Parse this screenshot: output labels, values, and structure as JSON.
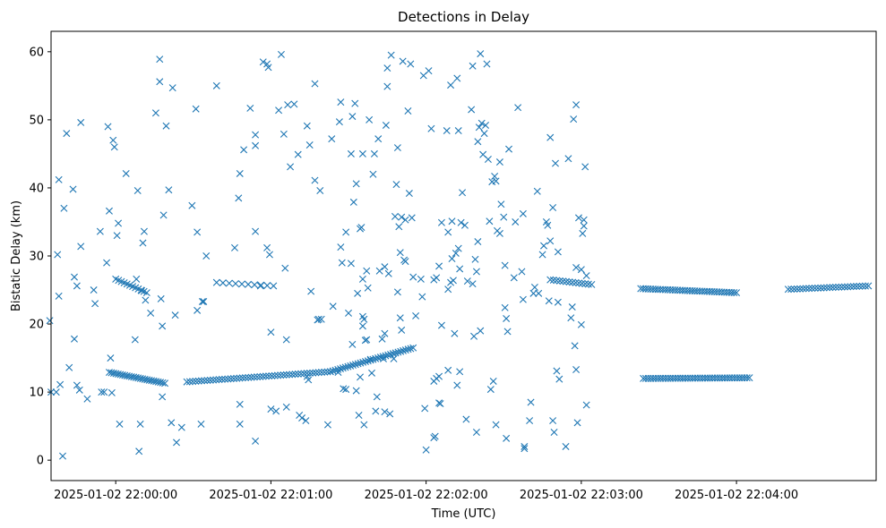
{
  "chart_data": {
    "type": "scatter",
    "title": "Detections in Delay",
    "xlabel": "Time (UTC)",
    "ylabel": "Bistatic Delay (km)",
    "marker": "x",
    "color": "#1f77b4",
    "x_unit": "seconds after 2025-01-02 21:59:00",
    "xlim": [
      35,
      354
    ],
    "ylim": [
      -3,
      63
    ],
    "x_ticks": [
      {
        "value": 60,
        "label": "2025-01-02 22:00:00"
      },
      {
        "value": 120,
        "label": "2025-01-02 22:01:00"
      },
      {
        "value": 180,
        "label": "2025-01-02 22:02:00"
      },
      {
        "value": 240,
        "label": "2025-01-02 22:03:00"
      },
      {
        "value": 300,
        "label": "2025-01-02 22:04:00"
      }
    ],
    "y_ticks": [
      0,
      10,
      20,
      30,
      40,
      50,
      60
    ],
    "tracks": [
      {
        "name": "track-low-1",
        "t_start": 57.5,
        "t_end": 79,
        "y_start": 12.9,
        "y_end": 11.3,
        "n": 26
      },
      {
        "name": "track-low-2",
        "t_start": 87.5,
        "t_end": 143,
        "y_start": 11.5,
        "y_end": 13.0,
        "n": 50
      },
      {
        "name": "track-rising",
        "t_start": 143,
        "t_end": 175,
        "y_start": 13.0,
        "y_end": 16.5,
        "n": 34
      },
      {
        "name": "track-low-3",
        "t_start": 264,
        "t_end": 305,
        "y_start": 12.0,
        "y_end": 12.1,
        "n": 44
      },
      {
        "name": "track-mid-1",
        "t_start": 60,
        "t_end": 72,
        "y_start": 26.6,
        "y_end": 24.6,
        "n": 12
      },
      {
        "name": "track-mid-2",
        "t_start": 99,
        "t_end": 121,
        "y_start": 26.1,
        "y_end": 25.6,
        "n": 10
      },
      {
        "name": "track-mid-3",
        "t_start": 228,
        "t_end": 244,
        "y_start": 26.5,
        "y_end": 25.8,
        "n": 14
      },
      {
        "name": "track-mid-4",
        "t_start": 263,
        "t_end": 300,
        "y_start": 25.2,
        "y_end": 24.6,
        "n": 40
      },
      {
        "name": "track-mid-5",
        "t_start": 320,
        "t_end": 351,
        "y_start": 25.1,
        "y_end": 25.6,
        "n": 28
      }
    ],
    "points": [
      [
        34.5,
        20.5
      ],
      [
        35,
        10
      ],
      [
        37,
        10
      ],
      [
        37.5,
        30.2
      ],
      [
        38,
        41.2
      ],
      [
        38,
        24.1
      ],
      [
        38.5,
        11.1
      ],
      [
        39.5,
        0.6
      ],
      [
        40,
        37
      ],
      [
        41,
        48
      ],
      [
        42,
        13.6
      ],
      [
        43.5,
        39.8
      ],
      [
        44,
        17.8
      ],
      [
        44,
        26.9
      ],
      [
        45,
        25.6
      ],
      [
        45,
        11
      ],
      [
        46,
        10.3
      ],
      [
        46.5,
        31.4
      ],
      [
        46.5,
        49.6
      ],
      [
        49,
        9
      ],
      [
        51.5,
        25
      ],
      [
        52,
        23
      ],
      [
        54,
        33.6
      ],
      [
        54.5,
        10
      ],
      [
        55.5,
        10
      ],
      [
        56.5,
        29
      ],
      [
        57,
        49
      ],
      [
        57.5,
        36.6
      ],
      [
        58,
        15
      ],
      [
        58.5,
        9.9
      ],
      [
        59,
        47
      ],
      [
        59.5,
        46
      ],
      [
        60.5,
        33
      ],
      [
        61,
        34.8
      ],
      [
        61.5,
        5.3
      ],
      [
        64,
        42.1
      ],
      [
        67.5,
        17.7
      ],
      [
        68,
        26.6
      ],
      [
        68.5,
        39.6
      ],
      [
        69,
        1.3
      ],
      [
        69.5,
        5.3
      ],
      [
        70,
        24.9
      ],
      [
        70.5,
        31.9
      ],
      [
        71,
        33.6
      ],
      [
        71.5,
        23.5
      ],
      [
        73.5,
        21.6
      ],
      [
        75.5,
        51
      ],
      [
        77,
        58.9
      ],
      [
        77,
        55.6
      ],
      [
        77.5,
        23.7
      ],
      [
        78,
        19.7
      ],
      [
        78,
        9.3
      ],
      [
        78.5,
        36
      ],
      [
        79.5,
        49.1
      ],
      [
        80.5,
        39.7
      ],
      [
        81.5,
        5.5
      ],
      [
        82,
        54.7
      ],
      [
        83,
        21.3
      ],
      [
        83.5,
        2.6
      ],
      [
        85.5,
        4.8
      ],
      [
        89.5,
        37.4
      ],
      [
        91,
        51.6
      ],
      [
        91.5,
        33.5
      ],
      [
        91.5,
        22
      ],
      [
        93,
        5.3
      ],
      [
        93.5,
        23.3
      ],
      [
        94,
        23.3
      ],
      [
        95,
        30
      ],
      [
        99,
        55
      ],
      [
        106,
        31.2
      ],
      [
        107.5,
        38.5
      ],
      [
        108,
        42.1
      ],
      [
        108,
        5.3
      ],
      [
        108,
        8.2
      ],
      [
        109.5,
        45.6
      ],
      [
        112,
        51.7
      ],
      [
        114,
        46.2
      ],
      [
        114,
        47.8
      ],
      [
        114,
        33.6
      ],
      [
        114,
        2.8
      ],
      [
        116,
        25.6
      ],
      [
        117,
        58.5
      ],
      [
        118.5,
        31.2
      ],
      [
        118.5,
        58.2
      ],
      [
        119,
        57.7
      ],
      [
        119.5,
        30.2
      ],
      [
        120,
        18.8
      ],
      [
        120,
        7.5
      ],
      [
        122,
        7.2
      ],
      [
        123,
        51.4
      ],
      [
        124,
        59.6
      ],
      [
        125,
        47.9
      ],
      [
        125.5,
        28.2
      ],
      [
        126,
        17.7
      ],
      [
        126,
        7.8
      ],
      [
        126.5,
        52.2
      ],
      [
        127.5,
        43.1
      ],
      [
        129,
        52.3
      ],
      [
        130.5,
        44.9
      ],
      [
        131,
        6.6
      ],
      [
        132,
        6.2
      ],
      [
        133.5,
        5.8
      ],
      [
        134,
        49.1
      ],
      [
        134,
        12.3
      ],
      [
        134.5,
        11.8
      ],
      [
        135,
        46.3
      ],
      [
        135.5,
        24.8
      ],
      [
        137,
        55.3
      ],
      [
        137,
        41.1
      ],
      [
        138,
        20.6
      ],
      [
        138.5,
        20.7
      ],
      [
        139,
        39.6
      ],
      [
        139.5,
        20.7
      ],
      [
        142,
        5.2
      ],
      [
        143.5,
        47.2
      ],
      [
        144,
        22.6
      ],
      [
        146,
        12.9
      ],
      [
        146.5,
        49.7
      ],
      [
        147,
        31.3
      ],
      [
        147,
        52.6
      ],
      [
        147.5,
        29
      ],
      [
        148,
        10.5
      ],
      [
        149,
        10.4
      ],
      [
        149,
        33.5
      ],
      [
        150,
        21.6
      ],
      [
        151,
        28.9
      ],
      [
        151,
        45
      ],
      [
        151.5,
        50.5
      ],
      [
        151.5,
        17
      ],
      [
        152,
        37.9
      ],
      [
        152.5,
        52.4
      ],
      [
        153,
        40.6
      ],
      [
        153,
        10.2
      ],
      [
        153.5,
        24.5
      ],
      [
        154,
        6.6
      ],
      [
        154.5,
        34
      ],
      [
        154.5,
        12.2
      ],
      [
        155,
        34.2
      ],
      [
        155.5,
        45
      ],
      [
        155.5,
        21.1
      ],
      [
        155.5,
        19.7
      ],
      [
        155.5,
        26.6
      ],
      [
        156,
        5.2
      ],
      [
        156,
        20.7
      ],
      [
        156.5,
        17.6
      ],
      [
        157,
        27.8
      ],
      [
        157,
        17.7
      ],
      [
        157.5,
        25.3
      ],
      [
        158,
        50
      ],
      [
        158.5,
        14.8
      ],
      [
        159,
        12.8
      ],
      [
        159.5,
        42
      ],
      [
        160,
        45
      ],
      [
        160.5,
        7.2
      ],
      [
        161,
        9.3
      ],
      [
        161.5,
        47.2
      ],
      [
        162,
        27.8
      ],
      [
        163,
        17.8
      ],
      [
        163.5,
        14.9
      ],
      [
        164,
        28.4
      ],
      [
        164,
        18.6
      ],
      [
        164,
        7.1
      ],
      [
        164.5,
        49.2
      ],
      [
        165,
        54.9
      ],
      [
        165,
        57.6
      ],
      [
        165.5,
        27.4
      ],
      [
        166,
        6.8
      ],
      [
        166.5,
        59.5
      ],
      [
        167.5,
        14.9
      ],
      [
        168,
        35.8
      ],
      [
        168.5,
        40.5
      ],
      [
        169,
        24.7
      ],
      [
        169,
        45.9
      ],
      [
        169.5,
        34.3
      ],
      [
        170,
        30.5
      ],
      [
        170,
        20.9
      ],
      [
        170.5,
        35.7
      ],
      [
        170.5,
        19.1
      ],
      [
        171,
        58.6
      ],
      [
        171.5,
        29.4
      ],
      [
        172,
        29.2
      ],
      [
        172,
        35.3
      ],
      [
        173,
        51.3
      ],
      [
        173.5,
        39.2
      ],
      [
        174,
        58.2
      ],
      [
        174.5,
        35.6
      ],
      [
        175,
        26.9
      ],
      [
        176,
        21.2
      ],
      [
        178,
        26.6
      ],
      [
        178.5,
        24
      ],
      [
        179,
        56.5
      ],
      [
        179.5,
        7.6
      ],
      [
        180,
        1.5
      ],
      [
        181,
        57.2
      ],
      [
        182,
        48.7
      ],
      [
        183,
        26.5
      ],
      [
        183,
        11.6
      ],
      [
        183,
        3.3
      ],
      [
        183.5,
        3.5
      ],
      [
        184,
        12
      ],
      [
        184,
        26.8
      ],
      [
        185,
        12.3
      ],
      [
        185,
        8.4
      ],
      [
        185,
        28.5
      ],
      [
        185.5,
        8.3
      ],
      [
        186,
        34.9
      ],
      [
        186,
        19.8
      ],
      [
        188,
        48.4
      ],
      [
        188.5,
        13.2
      ],
      [
        188.5,
        33.5
      ],
      [
        188.5,
        25.1
      ],
      [
        189.5,
        55.1
      ],
      [
        189.5,
        26.1
      ],
      [
        190,
        29.6
      ],
      [
        190,
        35.1
      ],
      [
        190.5,
        26.4
      ],
      [
        191,
        18.6
      ],
      [
        191.5,
        30.4
      ],
      [
        192,
        56.1
      ],
      [
        192,
        11
      ],
      [
        192.5,
        31.1
      ],
      [
        192.5,
        48.4
      ],
      [
        193,
        13
      ],
      [
        193,
        28.1
      ],
      [
        193.5,
        34.9
      ],
      [
        194,
        39.3
      ],
      [
        195,
        34.5
      ],
      [
        195.5,
        6
      ],
      [
        196,
        26.3
      ],
      [
        197.5,
        51.5
      ],
      [
        198,
        57.9
      ],
      [
        198,
        25.9
      ],
      [
        198.5,
        18.2
      ],
      [
        199,
        29.5
      ],
      [
        199.5,
        27.7
      ],
      [
        199.5,
        4.1
      ],
      [
        200,
        32.1
      ],
      [
        200,
        46.8
      ],
      [
        200.5,
        48.9
      ],
      [
        201,
        59.7
      ],
      [
        201,
        19
      ],
      [
        201.5,
        49.5
      ],
      [
        202,
        44.9
      ],
      [
        202.5,
        48
      ],
      [
        203,
        49.2
      ],
      [
        203.5,
        58.2
      ],
      [
        204,
        44.2
      ],
      [
        204.5,
        35.1
      ],
      [
        205,
        10.4
      ],
      [
        205.5,
        40.9
      ],
      [
        206,
        11.6
      ],
      [
        206.5,
        41.7
      ],
      [
        207,
        41
      ],
      [
        207,
        5.2
      ],
      [
        207.5,
        33.7
      ],
      [
        208.5,
        43.8
      ],
      [
        208.5,
        33.3
      ],
      [
        209,
        37.6
      ],
      [
        210,
        35.7
      ],
      [
        210.5,
        28.6
      ],
      [
        210.5,
        22.4
      ],
      [
        211,
        20.8
      ],
      [
        211,
        3.2
      ],
      [
        211.5,
        18.9
      ],
      [
        212,
        45.7
      ],
      [
        214,
        26.8
      ],
      [
        214.5,
        35
      ],
      [
        215.5,
        51.8
      ],
      [
        217,
        27.7
      ],
      [
        217.5,
        36.2
      ],
      [
        217.5,
        23.6
      ],
      [
        218,
        2
      ],
      [
        218,
        1.7
      ],
      [
        220,
        5.8
      ],
      [
        220.5,
        8.5
      ],
      [
        221.5,
        24.5
      ],
      [
        222,
        25.4
      ],
      [
        223,
        39.5
      ],
      [
        223.5,
        24.5
      ],
      [
        225,
        30.2
      ],
      [
        225.5,
        31.5
      ],
      [
        226.5,
        35
      ],
      [
        227,
        34.5
      ],
      [
        227.5,
        23.4
      ],
      [
        228,
        47.4
      ],
      [
        228,
        32.2
      ],
      [
        229,
        37.1
      ],
      [
        229,
        5.8
      ],
      [
        229.5,
        4.1
      ],
      [
        230,
        43.6
      ],
      [
        230.5,
        13.1
      ],
      [
        231,
        23.2
      ],
      [
        231,
        30.6
      ],
      [
        231.5,
        11.9
      ],
      [
        234,
        2
      ],
      [
        235,
        44.3
      ],
      [
        236,
        20.9
      ],
      [
        236.5,
        22.5
      ],
      [
        237,
        50.1
      ],
      [
        237.5,
        16.8
      ],
      [
        238,
        52.2
      ],
      [
        238,
        28.3
      ],
      [
        238,
        13.3
      ],
      [
        238.5,
        5.5
      ],
      [
        239,
        35.6
      ],
      [
        240,
        19.9
      ],
      [
        240.5,
        33.3
      ],
      [
        241,
        34.4
      ],
      [
        241,
        35.3
      ],
      [
        241.5,
        43.1
      ],
      [
        242,
        8.1
      ],
      [
        242,
        27.1
      ],
      [
        240,
        28
      ]
    ]
  }
}
